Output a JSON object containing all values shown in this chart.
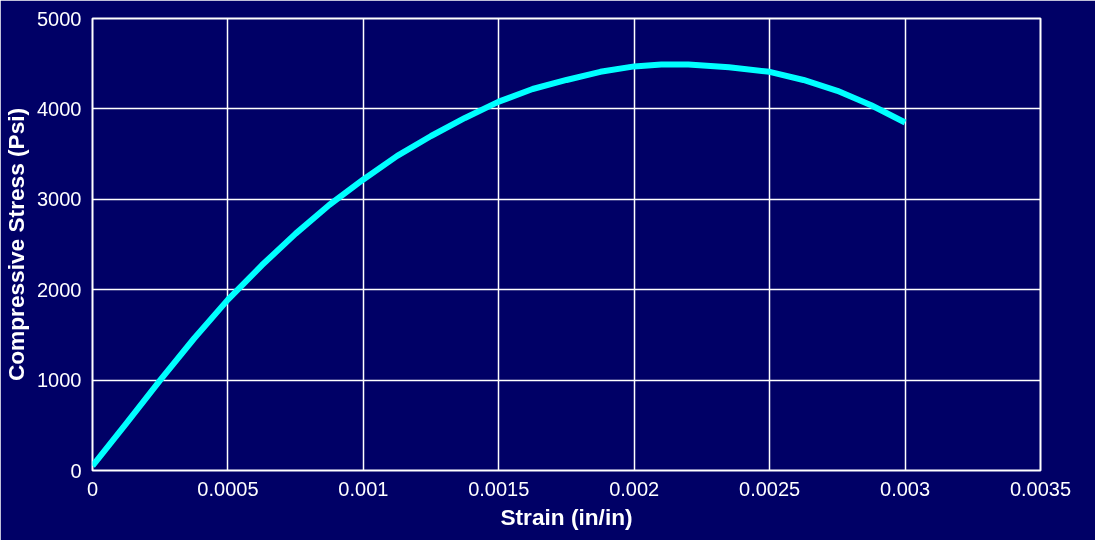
{
  "chart_data": {
    "type": "line",
    "xlabel": "Strain (in/in)",
    "ylabel": "Compressive Stress (Psi)",
    "x": [
      0,
      0.000125,
      0.00025,
      0.000375,
      0.0005,
      0.000625,
      0.00075,
      0.000875,
      0.001,
      0.001125,
      0.00125,
      0.001375,
      0.0015,
      0.001625,
      0.00175,
      0.001875,
      0.002,
      0.0021,
      0.0022,
      0.00235,
      0.0025,
      0.002625,
      0.00275,
      0.002875,
      0.003
    ],
    "series": [
      {
        "color": "#00ffff",
        "values": [
          50,
          520,
          1000,
          1460,
          1890,
          2270,
          2620,
          2940,
          3220,
          3480,
          3700,
          3900,
          4080,
          4220,
          4320,
          4410,
          4470,
          4490,
          4490,
          4460,
          4410,
          4320,
          4200,
          4040,
          3850
        ]
      }
    ],
    "xlim": [
      0,
      0.0035
    ],
    "xticks": [
      0,
      0.0005,
      0.001,
      0.0015,
      0.002,
      0.0025,
      0.003,
      0.0035
    ],
    "ylim": [
      0,
      5000
    ],
    "yticks": [
      0,
      1000,
      2000,
      3000,
      4000,
      5000
    ],
    "grid": true,
    "marker": "none",
    "line_style": "solid"
  }
}
